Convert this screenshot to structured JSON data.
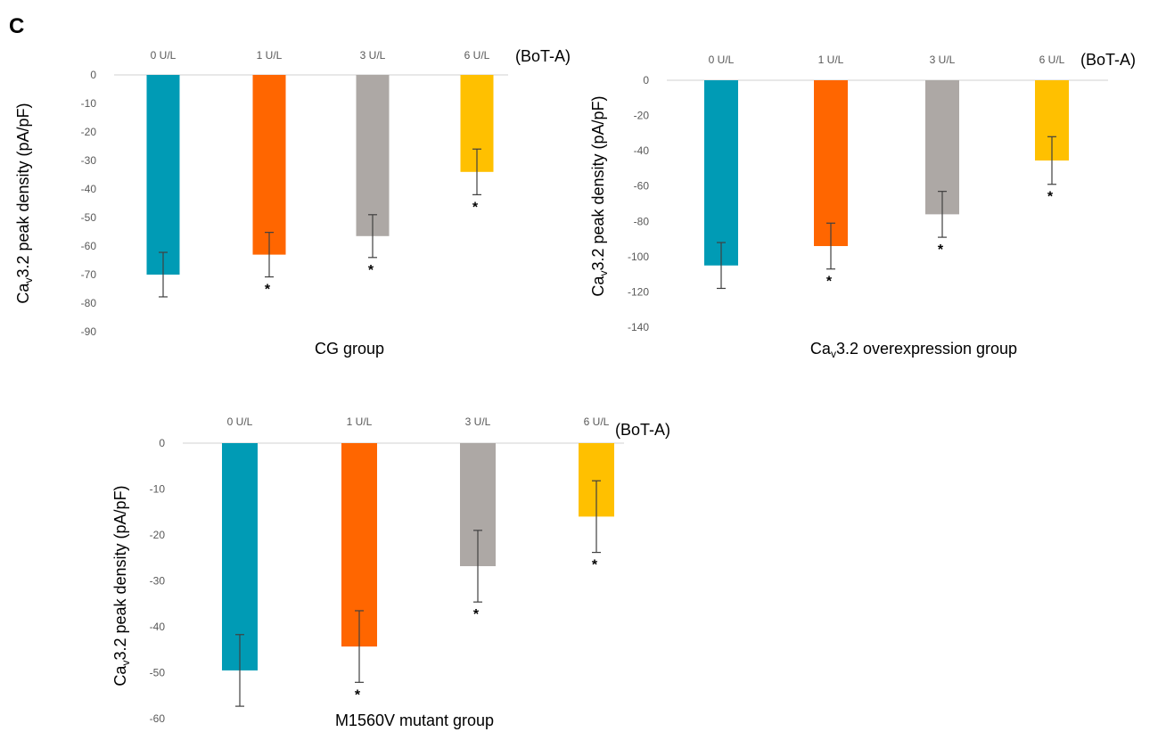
{
  "panel_label": "C",
  "colors": [
    "#009BB5",
    "#FF6600",
    "#ADA8A5",
    "#FFC000"
  ],
  "chart_data": [
    {
      "type": "bar",
      "title": "",
      "xlabel": "CG group",
      "ylabel_main": "Ca",
      "ylabel_sub": "v",
      "ylabel_rest": "3.2 peak density (pA/pF)",
      "treatment_label": "(BoT-A)",
      "categories": [
        "0 U/L",
        "1 U/L",
        "3 U/L",
        "6 U/L"
      ],
      "values": [
        -70,
        -63,
        -56.5,
        -34
      ],
      "errors": [
        7.8,
        7.8,
        7.5,
        8
      ],
      "significant": [
        false,
        true,
        true,
        true
      ],
      "significance_marker": "*",
      "ylim": [
        -90,
        0
      ],
      "yticks": [
        0,
        -10,
        -20,
        -30,
        -40,
        -50,
        -60,
        -70,
        -80,
        -90
      ],
      "ytick_labels": [
        "0",
        "-10",
        "-20",
        "-30",
        "-40",
        "-50",
        "-60",
        "-70",
        "-80",
        "-90"
      ]
    },
    {
      "type": "bar",
      "title": "",
      "xlabel_main": "Ca",
      "xlabel_sub": "v",
      "xlabel_rest": "3.2 overexpression group",
      "ylabel_main": "Ca",
      "ylabel_sub": "v",
      "ylabel_rest": "3.2 peak density (pA/pF)",
      "treatment_label": "(BoT-A)",
      "categories": [
        "0 U/L",
        "1 U/L",
        "3 U/L",
        "6 U/L"
      ],
      "values": [
        -105,
        -94,
        -76,
        -45.5
      ],
      "errors": [
        13,
        13,
        13,
        13.5
      ],
      "significant": [
        false,
        true,
        true,
        true
      ],
      "significance_marker": "*",
      "ylim": [
        -140,
        0
      ],
      "yticks": [
        0,
        -20,
        -40,
        -60,
        -80,
        -100,
        -120,
        -140
      ],
      "ytick_labels": [
        "0",
        "-20",
        "-40",
        "-60",
        "-80",
        "-100",
        "-120",
        "-140"
      ]
    },
    {
      "type": "bar",
      "title": "",
      "xlabel": "M1560V mutant group",
      "ylabel_main": "Ca",
      "ylabel_sub": "v",
      "ylabel_rest": "3.2 peak density (pA/pF)",
      "treatment_label": "(BoT-A)",
      "categories": [
        "0 U/L",
        "1 U/L",
        "3 U/L",
        "6 U/L"
      ],
      "values": [
        -49.5,
        -44.3,
        -26.8,
        -16
      ],
      "errors": [
        7.8,
        7.8,
        7.8,
        7.8
      ],
      "significant": [
        false,
        true,
        true,
        true
      ],
      "significance_marker": "*",
      "ylim": [
        -60,
        0
      ],
      "yticks": [
        0,
        -10,
        -20,
        -30,
        -40,
        -50,
        -60
      ],
      "ytick_labels": [
        "0",
        "-10",
        "-20",
        "-30",
        "-40",
        "-50",
        "-60"
      ]
    }
  ]
}
